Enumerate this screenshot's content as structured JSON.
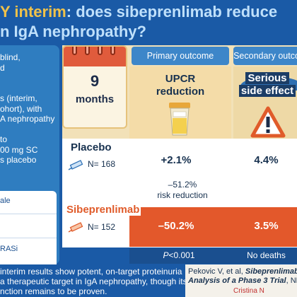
{
  "header": {
    "title_part1": "Y interim",
    "title_part2": ": does sibeprenlimab reduce",
    "title_line2": "n IgA nephropathy?"
  },
  "left_panel": {
    "lines": [
      "blind,",
      "d",
      "",
      "",
      "s (interim,",
      "ohort), with",
      "A nephropathy",
      "",
      "to",
      "00 mg SC",
      "s placebo"
    ],
    "box_items": [
      "ale",
      "",
      "RASi"
    ]
  },
  "timing": {
    "value": "9",
    "unit": "months"
  },
  "outcomes": {
    "primary_label": "Primary outcome",
    "primary_name_line1": "UPCR",
    "primary_name_line2": "reduction",
    "secondary_label": "Secondary outco",
    "secondary_name_line1": "Serious",
    "secondary_name_line2": "side effect"
  },
  "arms": {
    "placebo": {
      "name": "Placebo",
      "n": "N= 168",
      "primary": "+2.1%",
      "secondary": "4.4%"
    },
    "sibeprenlimab": {
      "name": "Sibeprenlimab",
      "n": "N= 152",
      "primary": "–50.2%",
      "secondary": "3.5%"
    }
  },
  "difference": {
    "value": "–51.2%",
    "label": "risk reduction"
  },
  "stats": {
    "p_italic": "P",
    "p_rest": "<0.001",
    "secondary_note": "No deaths"
  },
  "conclusion": {
    "line1": "interim results show potent, on-target proteinuria",
    "line2": "a therapeutic target in IgA nephropathy, though its",
    "line3": "nction remains to be proven."
  },
  "citation": {
    "line1_plain": "Pekovic V, et al, ",
    "line1_bold": "Sibeprenlimab",
    "line2_bold": "Analysis of a Phase 3 Trial",
    "line2_plain": ", NE",
    "author": "Cristina N"
  },
  "colors": {
    "navy": "#1a5aa6",
    "orange": "#e3582b",
    "gold": "#f0c24a",
    "cream": "#f2e1b8"
  }
}
